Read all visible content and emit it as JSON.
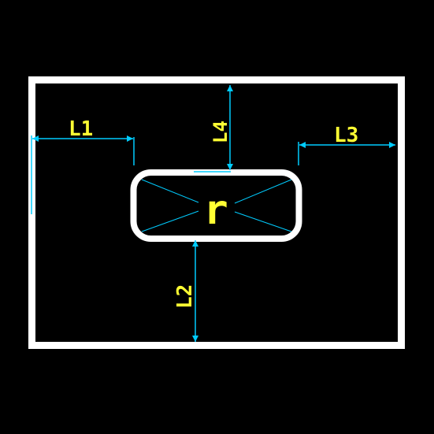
{
  "labels": {
    "l1": "L1",
    "l2": "L2",
    "l3": "L3",
    "l4": "L4",
    "radius": "r"
  },
  "colors": {
    "background": "#000000",
    "outline": "#ffffff",
    "dimension": "#00ccff",
    "text": "#ffff33"
  }
}
